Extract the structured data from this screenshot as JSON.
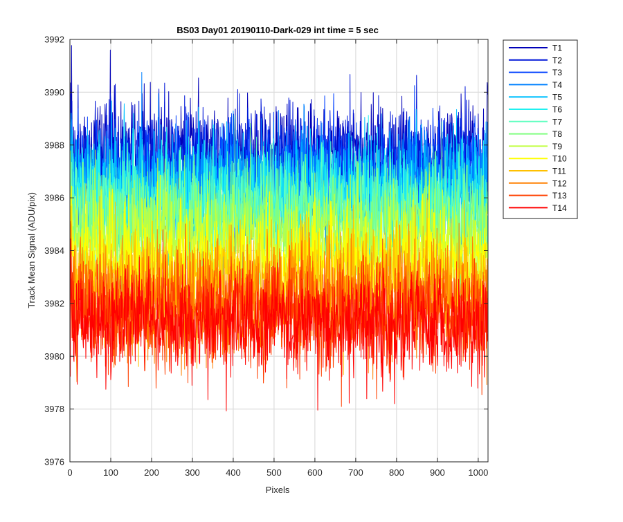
{
  "chart_data": {
    "type": "line",
    "title": "BS03 Day01 20190110-Dark-029 int time = 5 sec",
    "xlabel": "Pixels",
    "ylabel": "Track Mean Signal (ADU/pix)",
    "xlim": [
      0,
      1024
    ],
    "ylim": [
      3976,
      3992
    ],
    "xticks": [
      0,
      100,
      200,
      300,
      400,
      500,
      600,
      700,
      800,
      900,
      1000
    ],
    "yticks": [
      3976,
      3978,
      3980,
      3982,
      3984,
      3986,
      3988,
      3990,
      3992
    ],
    "grid": true,
    "legend_position": "outside-right",
    "series": [
      {
        "name": "T1",
        "color": "#0000b8",
        "mean": 3987.6,
        "noise": 1.4
      },
      {
        "name": "T2",
        "color": "#0016d8",
        "mean": 3987.2,
        "noise": 1.4
      },
      {
        "name": "T3",
        "color": "#0040ff",
        "mean": 3986.8,
        "noise": 1.4
      },
      {
        "name": "T4",
        "color": "#0080ff",
        "mean": 3986.5,
        "noise": 1.4
      },
      {
        "name": "T5",
        "color": "#00c0ff",
        "mean": 3986.2,
        "noise": 1.4
      },
      {
        "name": "T6",
        "color": "#20f0f0",
        "mean": 3985.9,
        "noise": 1.4
      },
      {
        "name": "T7",
        "color": "#60ffc0",
        "mean": 3985.5,
        "noise": 1.4
      },
      {
        "name": "T8",
        "color": "#80ff80",
        "mean": 3985.0,
        "noise": 1.4
      },
      {
        "name": "T9",
        "color": "#c0ff40",
        "mean": 3984.3,
        "noise": 1.4
      },
      {
        "name": "T10",
        "color": "#ffff00",
        "mean": 3983.6,
        "noise": 1.4
      },
      {
        "name": "T11",
        "color": "#ffc000",
        "mean": 3982.8,
        "noise": 1.4
      },
      {
        "name": "T12",
        "color": "#ff8000",
        "mean": 3982.1,
        "noise": 1.4
      },
      {
        "name": "T13",
        "color": "#ff4000",
        "mean": 3981.6,
        "noise": 1.4
      },
      {
        "name": "T14",
        "color": "#ff0000",
        "mean": 3981.3,
        "noise": 1.4
      }
    ]
  }
}
